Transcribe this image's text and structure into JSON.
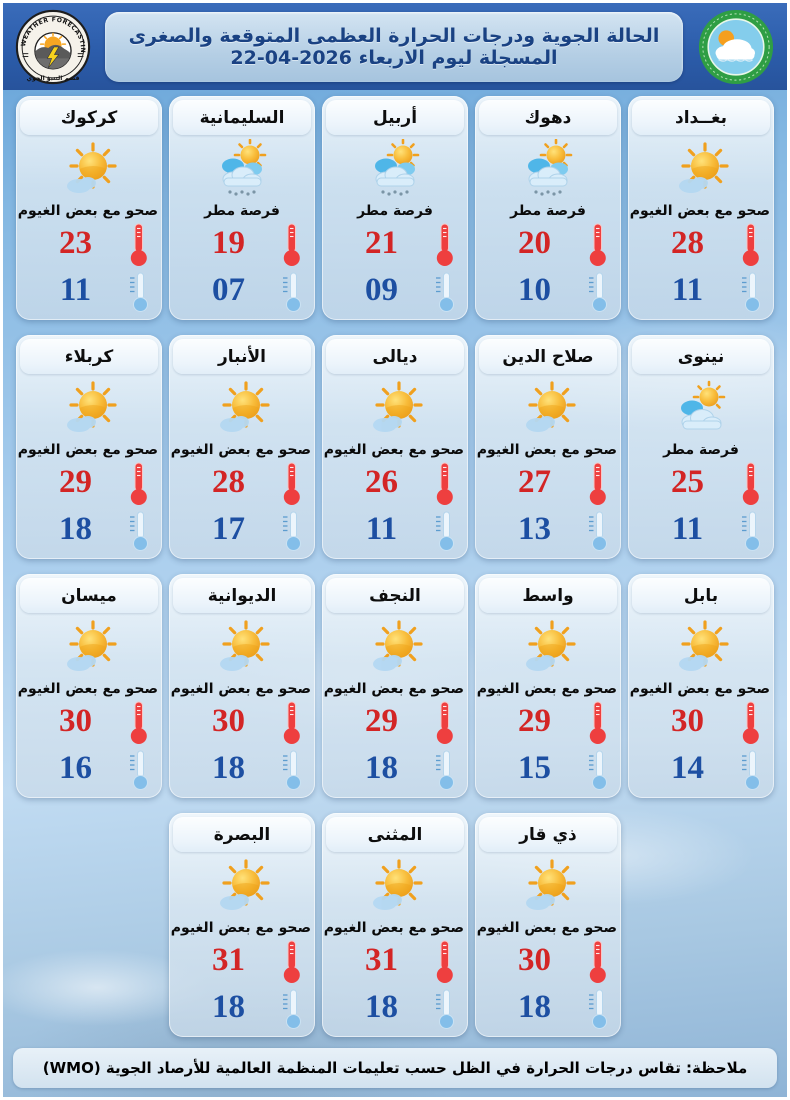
{
  "header": {
    "title": "الحالة الجوية ودرجات الحرارة العظمى المتوقعة والصغرى المسجلة ليوم الاربعاء 2026-04-22",
    "dept_logo": {
      "arc_text": "WEATHER FORECASTING DEPT",
      "bottom_text": "قسم التنبؤ الجوي"
    }
  },
  "colors": {
    "header_bar": "#2c5dab",
    "title_text": "#1a4283",
    "max_temp": "#d32525",
    "min_temp": "#1d4fa2",
    "card_bg": "#dbe8f2",
    "sky": "#85b8e2",
    "authority_logo_ring": "#2f9e44"
  },
  "rows": [
    [
      {
        "name": "بغــداد",
        "condition": "صحو مع بعض الغيوم",
        "icon": "sun-small-cloud",
        "max": "28",
        "min": "11"
      },
      {
        "name": "دهوك",
        "condition": "فرصة مطر",
        "icon": "sun-rain-cloud",
        "max": "20",
        "min": "10"
      },
      {
        "name": "أربيل",
        "condition": "فرصة مطر",
        "icon": "sun-rain-cloud",
        "max": "21",
        "min": "09"
      },
      {
        "name": "السليمانية",
        "condition": "فرصة مطر",
        "icon": "sun-rain-cloud",
        "max": "19",
        "min": "07"
      },
      {
        "name": "كركوك",
        "condition": "صحو مع بعض الغيوم",
        "icon": "sun-small-cloud",
        "max": "23",
        "min": "11"
      }
    ],
    [
      {
        "name": "نينوى",
        "condition": "فرصة مطر",
        "icon": "sun-behind-clouds",
        "max": "25",
        "min": "11"
      },
      {
        "name": "صلاح الدين",
        "condition": "صحو مع بعض الغيوم",
        "icon": "sun-small-cloud",
        "max": "27",
        "min": "13"
      },
      {
        "name": "ديالى",
        "condition": "صحو مع بعض الغيوم",
        "icon": "sun-small-cloud",
        "max": "26",
        "min": "11"
      },
      {
        "name": "الأنبار",
        "condition": "صحو مع بعض الغيوم",
        "icon": "sun-small-cloud",
        "max": "28",
        "min": "17"
      },
      {
        "name": "كربلاء",
        "condition": "صحو مع بعض الغيوم",
        "icon": "sun-small-cloud",
        "max": "29",
        "min": "18"
      }
    ],
    [
      {
        "name": "بابل",
        "condition": "صحو مع بعض الغيوم",
        "icon": "sun-small-cloud",
        "max": "30",
        "min": "14"
      },
      {
        "name": "واسط",
        "condition": "صحو مع بعض الغيوم",
        "icon": "sun-small-cloud",
        "max": "29",
        "min": "15"
      },
      {
        "name": "النجف",
        "condition": "صحو مع بعض الغيوم",
        "icon": "sun-small-cloud",
        "max": "29",
        "min": "18"
      },
      {
        "name": "الديوانية",
        "condition": "صحو مع بعض الغيوم",
        "icon": "sun-small-cloud",
        "max": "30",
        "min": "18"
      },
      {
        "name": "ميسان",
        "condition": "صحو مع بعض الغيوم",
        "icon": "sun-small-cloud",
        "max": "30",
        "min": "16"
      }
    ],
    [
      {
        "name": "ذي قار",
        "condition": "صحو مع بعض الغيوم",
        "icon": "sun-small-cloud",
        "max": "30",
        "min": "18"
      },
      {
        "name": "المثنى",
        "condition": "صحو مع بعض الغيوم",
        "icon": "sun-small-cloud",
        "max": "31",
        "min": "18"
      },
      {
        "name": "البصرة",
        "condition": "صحو مع بعض الغيوم",
        "icon": "sun-small-cloud",
        "max": "31",
        "min": "18"
      }
    ]
  ],
  "footer": {
    "note": "ملاحظة: تقاس درجات الحرارة في الظل حسب تعليمات المنظمة العالمية للأرصاد الجوية (WMO)"
  }
}
